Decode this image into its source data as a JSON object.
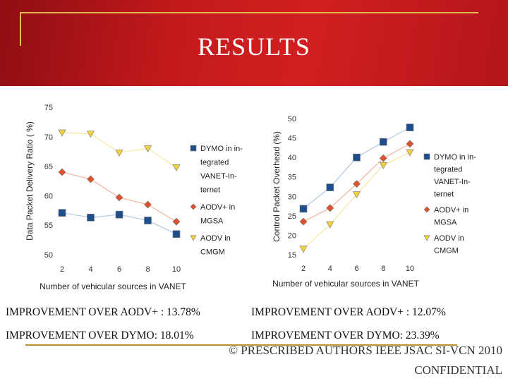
{
  "slide": {
    "title": "RESULTS",
    "stats": {
      "left_aodv": "IMPROVEMENT OVER AODV+ : 13.78%",
      "left_dymo": "IMPROVEMENT OVER DYMO: 18.01%",
      "right_aodv": "IMPROVEMENT OVER AODV+ : 12.07%",
      "right_dymo": "IMPROVEMENT OVER DYMO:  23.39%"
    },
    "footer_line1": "© PRESCRIBED AUTHORS IEEE JSAC SI-VCN 2010",
    "footer_line2": "CONFIDENTIAL",
    "colors": {
      "banner": "#c41a1c",
      "accent_line": "#e6b94c"
    }
  },
  "chart_data": [
    {
      "type": "line",
      "xlabel": "Number of vehicular sources in VANET",
      "ylabel": "Data Packet Delivery Ratio ( %)",
      "x": [
        2,
        4,
        6,
        8,
        10
      ],
      "ylim": [
        50,
        75
      ],
      "yticks": [
        50,
        55,
        60,
        65,
        70,
        75
      ],
      "legend_position": "right",
      "series": [
        {
          "name_lines": [
            "DYMO in in-",
            "tegrated",
            "VANET-In-",
            "ternet"
          ],
          "marker": "square",
          "color": "#1f4e8c",
          "line_color": "#b8cbe4",
          "values": [
            57.1,
            56.3,
            56.8,
            55.8,
            53.5
          ]
        },
        {
          "name_lines": [
            "AODV+ in",
            "MGSA"
          ],
          "marker": "diamond",
          "color": "#e0502a",
          "line_color": "#f2b8a4",
          "values": [
            64.0,
            62.8,
            59.7,
            58.5,
            55.6
          ]
        },
        {
          "name_lines": [
            "AODV in",
            "CMGM"
          ],
          "marker": "triangle",
          "color": "#f2d23a",
          "line_color": "#f6e9a8",
          "values": [
            70.7,
            70.5,
            67.3,
            68.0,
            64.8
          ]
        }
      ]
    },
    {
      "type": "line",
      "xlabel": "Number of vehicular sources in VANET",
      "ylabel": "Control Packet Overhead (%)",
      "x": [
        2,
        4,
        6,
        8,
        10
      ],
      "ylim": [
        15,
        50
      ],
      "yticks": [
        15,
        20,
        25,
        30,
        35,
        40,
        45,
        50
      ],
      "legend_position": "right",
      "series": [
        {
          "name_lines": [
            "DYMO in in-",
            "tegrated",
            "VANET-In-",
            "ternet"
          ],
          "marker": "square",
          "color": "#1f4e8c",
          "line_color": "#b8cbe4",
          "values": [
            26.8,
            32.3,
            40.0,
            44.0,
            47.7
          ]
        },
        {
          "name_lines": [
            "AODV+ in",
            "MGSA"
          ],
          "marker": "diamond",
          "color": "#e0502a",
          "line_color": "#f2b8a4",
          "values": [
            23.5,
            27.0,
            33.2,
            39.8,
            43.5
          ]
        },
        {
          "name_lines": [
            "AODV in",
            "CMGM"
          ],
          "marker": "triangle",
          "color": "#f2d23a",
          "line_color": "#f6e9a8",
          "values": [
            16.5,
            22.8,
            30.5,
            38.0,
            41.3
          ]
        }
      ]
    }
  ]
}
